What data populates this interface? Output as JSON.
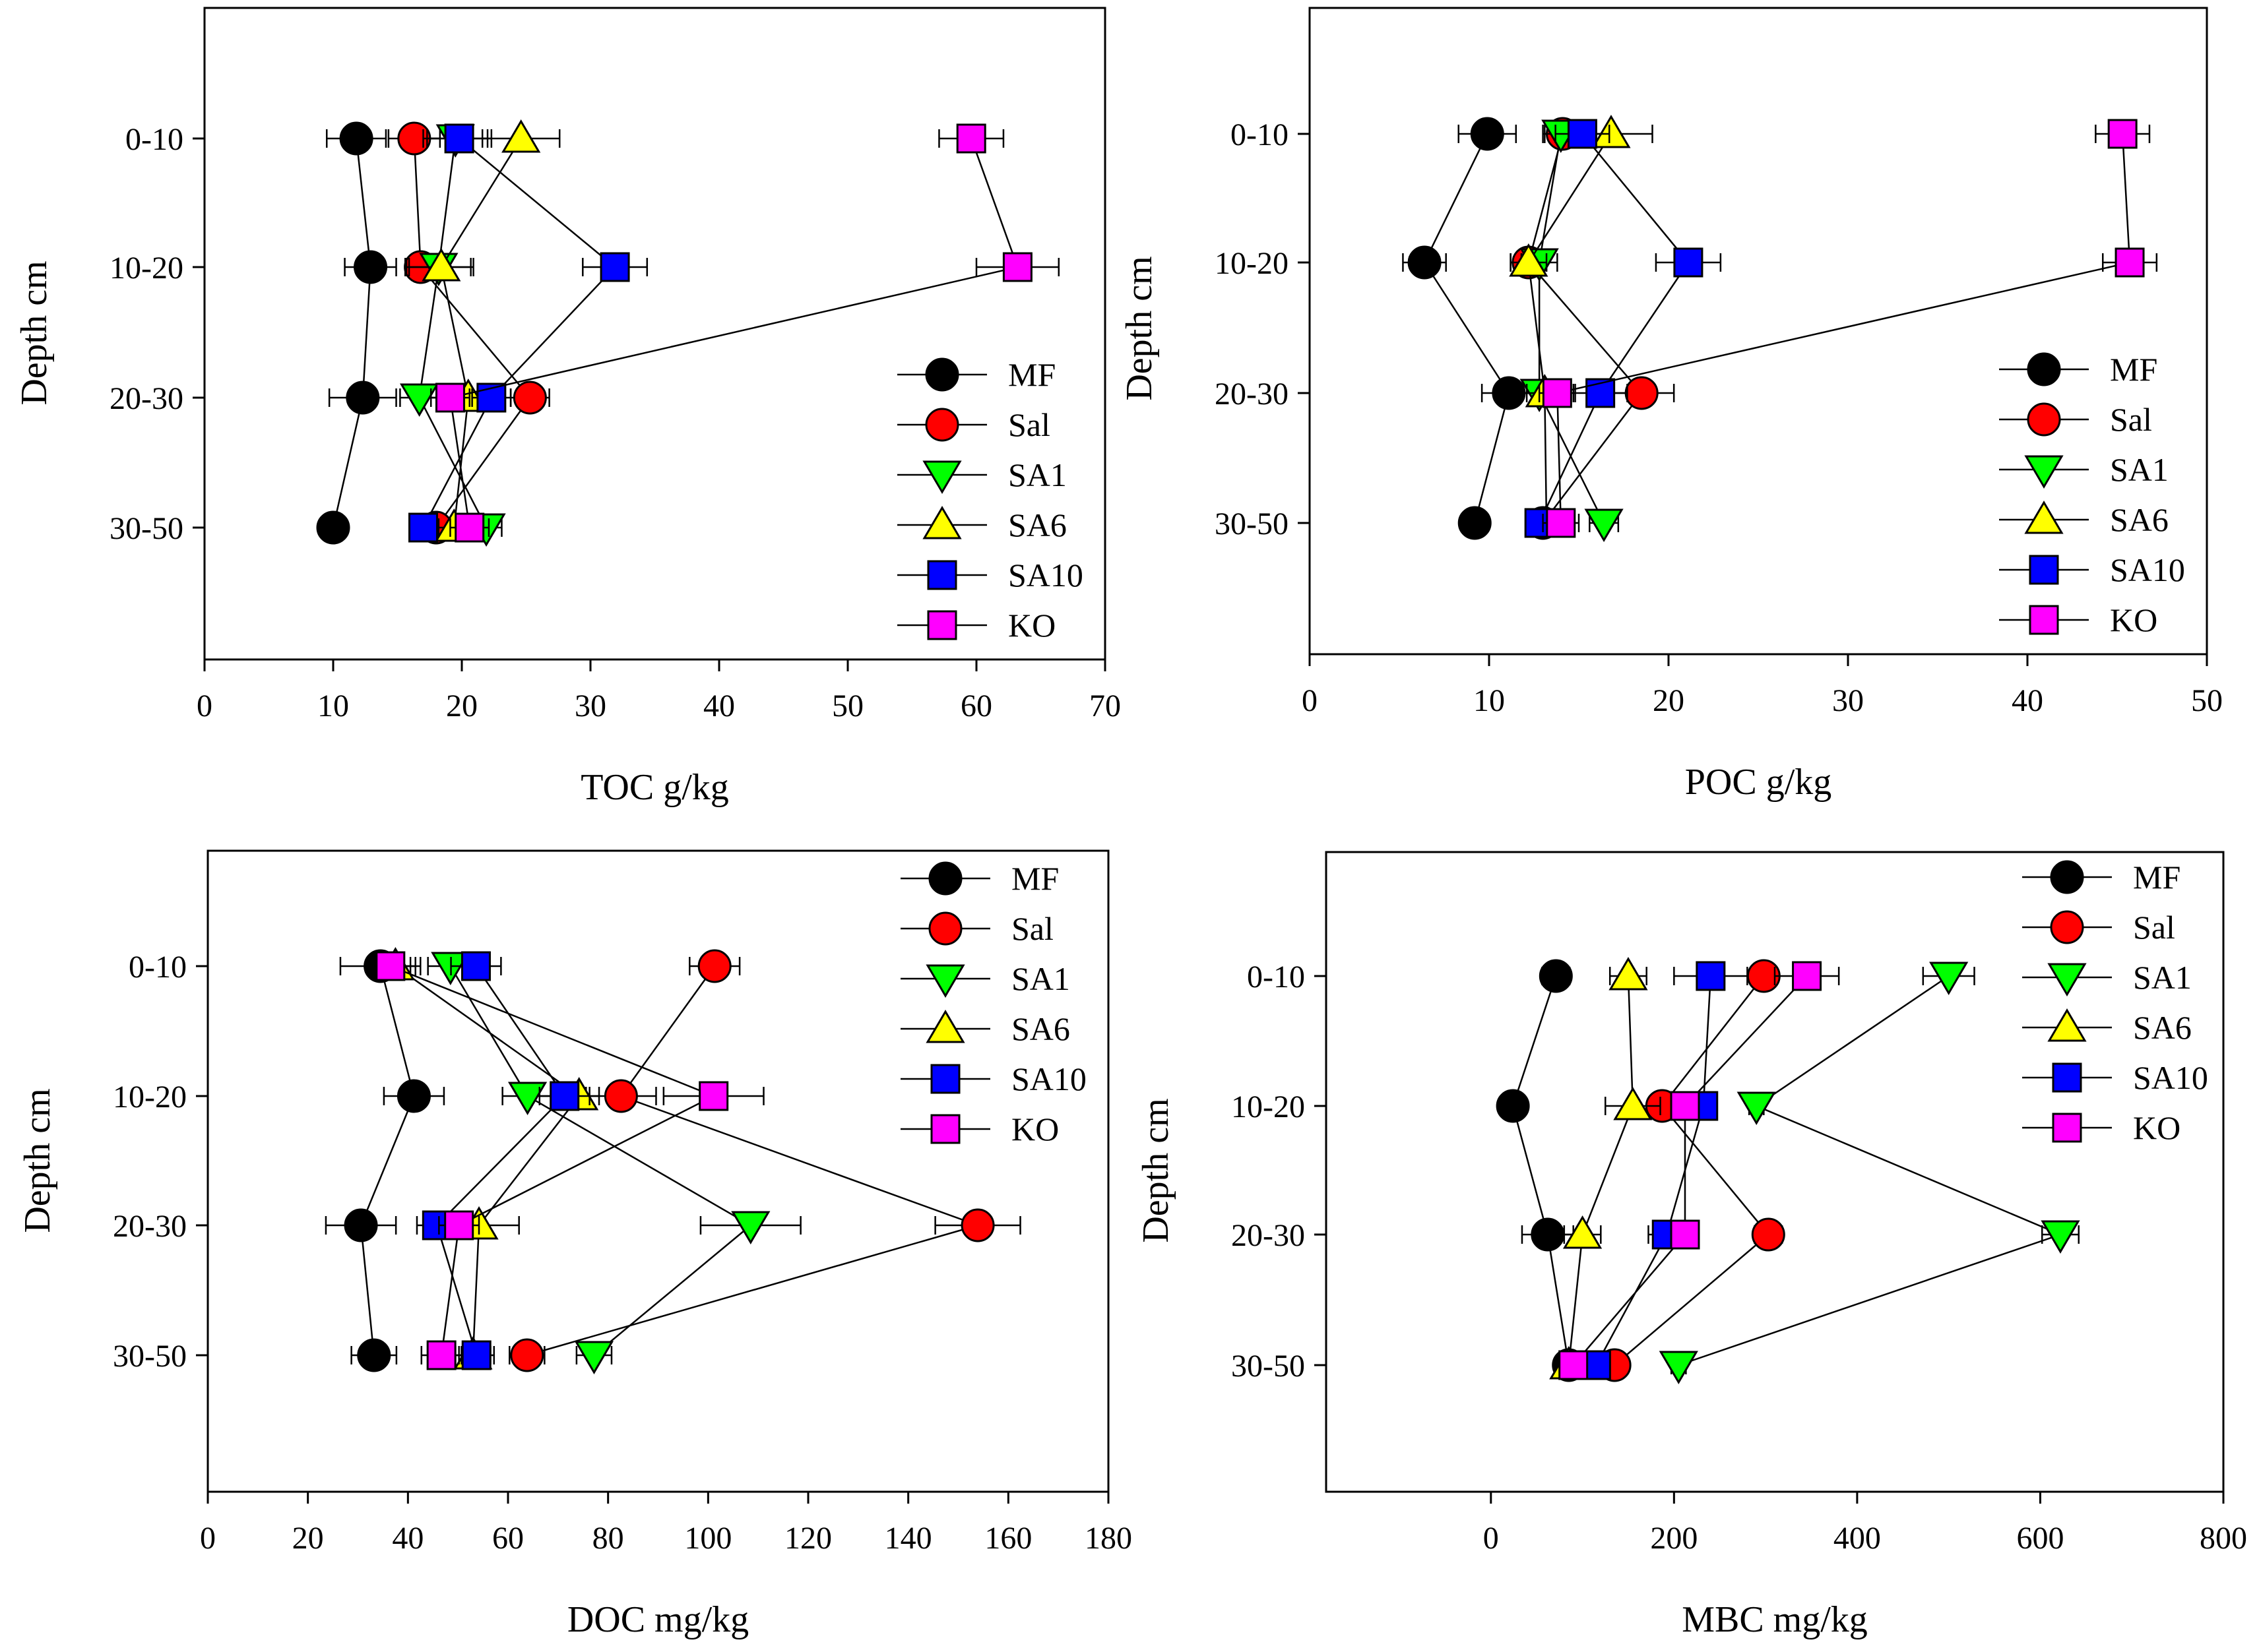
{
  "series_styles": {
    "MF": {
      "marker": "circle",
      "color": "#000000"
    },
    "Sal": {
      "marker": "circle",
      "color": "#ff0000"
    },
    "SA1": {
      "marker": "triangle-down",
      "color": "#00ff00"
    },
    "SA6": {
      "marker": "triangle-up",
      "color": "#ffff00"
    },
    "SA10": {
      "marker": "square",
      "color": "#0000ff"
    },
    "KO": {
      "marker": "square",
      "color": "#ff00ff"
    }
  },
  "chart_data": [
    {
      "type": "line",
      "id": "toc",
      "xlabel": "TOC g/kg",
      "ylabel": "Depth cm",
      "categories": [
        "0-10",
        "10-20",
        "20-30",
        "30-50"
      ],
      "xlim": [
        0,
        70
      ],
      "xticks": [
        0,
        10,
        20,
        30,
        40,
        50,
        60,
        70
      ],
      "legend_position": "right-lower",
      "series": [
        {
          "name": "MF",
          "values": [
            11.8,
            12.9,
            12.3,
            10.0
          ],
          "errors": [
            2.3,
            2.0,
            2.6,
            1.0
          ]
        },
        {
          "name": "Sal",
          "values": [
            16.3,
            16.8,
            25.3,
            18.0
          ],
          "errors": [
            2.0,
            1.2,
            1.5,
            1.0
          ]
        },
        {
          "name": "SA1",
          "values": [
            19.5,
            18.2,
            16.7,
            21.9
          ],
          "errors": [
            2.5,
            2.5,
            1.5,
            1.2
          ]
        },
        {
          "name": "SA6",
          "values": [
            24.6,
            18.4,
            20.5,
            19.4
          ],
          "errors": [
            3.0,
            2.5,
            1.5,
            1.2
          ]
        },
        {
          "name": "SA10",
          "values": [
            19.8,
            31.9,
            22.3,
            17.0
          ],
          "errors": [
            2.5,
            2.5,
            1.5,
            1.0
          ]
        },
        {
          "name": "KO",
          "values": [
            59.6,
            63.2,
            19.1,
            20.6
          ],
          "errors": [
            2.5,
            3.2,
            1.5,
            1.5
          ]
        }
      ]
    },
    {
      "type": "line",
      "id": "poc",
      "xlabel": "POC g/kg",
      "ylabel": "Depth cm",
      "categories": [
        "0-10",
        "10-20",
        "20-30",
        "30-50"
      ],
      "xlim": [
        0,
        50
      ],
      "xticks": [
        0,
        10,
        20,
        30,
        40,
        50
      ],
      "legend_position": "right-lower",
      "series": [
        {
          "name": "MF",
          "values": [
            9.9,
            6.4,
            11.1,
            9.2
          ],
          "errors": [
            1.6,
            1.2,
            1.5,
            0.7
          ]
        },
        {
          "name": "Sal",
          "values": [
            14.1,
            12.2,
            18.5,
            13.0
          ],
          "errors": [
            1.0,
            1.0,
            1.8,
            0.7
          ]
        },
        {
          "name": "SA1",
          "values": [
            14.0,
            12.8,
            12.8,
            16.4
          ],
          "errors": [
            1.0,
            1.0,
            1.0,
            0.8
          ]
        },
        {
          "name": "SA6",
          "values": [
            16.8,
            12.2,
            13.1,
            13.2
          ],
          "errors": [
            2.3,
            1.0,
            1.0,
            0.7
          ]
        },
        {
          "name": "SA10",
          "values": [
            15.2,
            21.1,
            16.2,
            12.8
          ],
          "errors": [
            1.5,
            1.8,
            1.5,
            0.7
          ]
        },
        {
          "name": "KO",
          "values": [
            45.3,
            45.7,
            13.8,
            14.0
          ],
          "errors": [
            1.5,
            1.5,
            1.0,
            1.0
          ]
        }
      ]
    },
    {
      "type": "line",
      "id": "doc",
      "xlabel": "DOC mg/kg",
      "ylabel": "Depth cm",
      "categories": [
        "0-10",
        "10-20",
        "20-30",
        "30-50"
      ],
      "xlim": [
        0,
        180
      ],
      "xticks": [
        0,
        20,
        40,
        60,
        80,
        100,
        120,
        140,
        160,
        180
      ],
      "legend_position": "top-right",
      "series": [
        {
          "name": "MF",
          "values": [
            34.5,
            41.2,
            30.6,
            33.2
          ],
          "errors": [
            8.0,
            6.0,
            7.0,
            4.5
          ]
        },
        {
          "name": "Sal",
          "values": [
            101.3,
            82.6,
            153.9,
            63.8
          ],
          "errors": [
            5.0,
            7.0,
            8.5,
            3.5
          ]
        },
        {
          "name": "SA1",
          "values": [
            48.5,
            63.9,
            108.5,
            77.2
          ],
          "errors": [
            4.5,
            5.0,
            10.0,
            3.5
          ]
        },
        {
          "name": "SA6",
          "values": [
            37.5,
            74.2,
            54.2,
            53.0
          ],
          "errors": [
            4.0,
            4.0,
            8.0,
            3.5
          ]
        },
        {
          "name": "SA10",
          "values": [
            53.6,
            71.3,
            45.8,
            53.7
          ],
          "errors": [
            5.0,
            5.0,
            4.0,
            3.5
          ]
        },
        {
          "name": "KO",
          "values": [
            36.5,
            101.1,
            50.2,
            46.7
          ],
          "errors": [
            4.0,
            10.0,
            4.0,
            4.0
          ]
        }
      ]
    },
    {
      "type": "line",
      "id": "mbc",
      "xlabel": "MBC mg/kg",
      "ylabel": "Depth cm",
      "categories": [
        "0-10",
        "10-20",
        "20-30",
        "30-50"
      ],
      "xlim": [
        -180,
        800
      ],
      "xticks": [
        0,
        200,
        400,
        600,
        800
      ],
      "legend_position": "top-right",
      "series": [
        {
          "name": "MF",
          "values": [
            71,
            24,
            62,
            85
          ],
          "errors": [
            15,
            8,
            28,
            10
          ]
        },
        {
          "name": "Sal",
          "values": [
            298,
            187,
            303,
            135
          ],
          "errors": [
            10,
            10,
            15,
            10
          ]
        },
        {
          "name": "SA1",
          "values": [
            500,
            290,
            622,
            205
          ],
          "errors": [
            28,
            8,
            20,
            8
          ]
        },
        {
          "name": "SA6",
          "values": [
            150,
            155,
            100,
            85
          ],
          "errors": [
            20,
            30,
            20,
            10
          ]
        },
        {
          "name": "SA10",
          "values": [
            240,
            232,
            192,
            115
          ],
          "errors": [
            40,
            15,
            20,
            15
          ]
        },
        {
          "name": "KO",
          "values": [
            345,
            212,
            212,
            90
          ],
          "errors": [
            35,
            15,
            15,
            10
          ]
        }
      ]
    }
  ]
}
